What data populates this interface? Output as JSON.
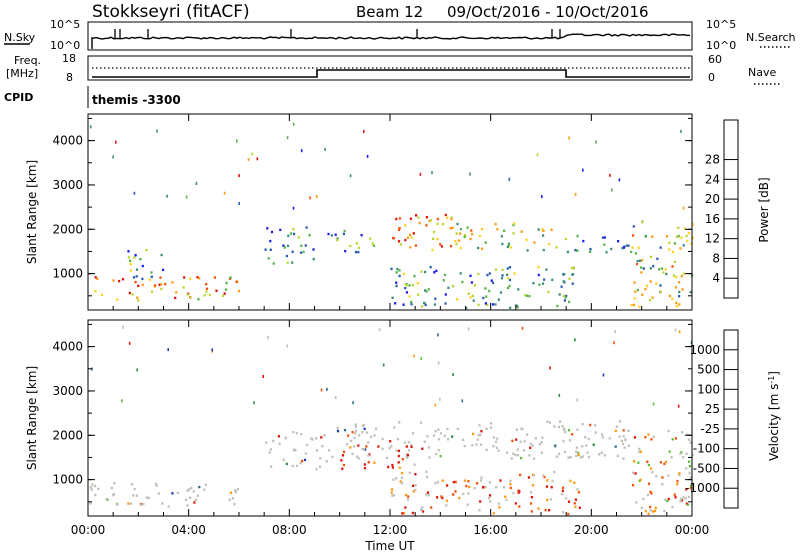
{
  "header": {
    "station": "Stokkseyri (fitACF)",
    "beam": "Beam 12",
    "date_range": "09/Oct/2016 - 10/Oct/2016"
  },
  "noise_panel": {
    "left_label": "N.Sky",
    "right_label": "N.Search",
    "left_ticks": [
      "10^5",
      "10^0"
    ],
    "right_ticks": [
      "10^5",
      "10^0"
    ]
  },
  "freq_panel": {
    "left_label_1": "Freq.",
    "left_label_2": "[MHz]",
    "right_label": "Nave",
    "left_ticks": [
      "18",
      "8"
    ],
    "right_ticks": [
      "60",
      "0"
    ]
  },
  "cpid_panel": {
    "label": "CPID",
    "program": "themis -3300"
  },
  "chart_data": [
    {
      "type": "heatmap",
      "title": "",
      "xlabel": "Time UT",
      "ylabel": "Slant Range [km]",
      "xlim": [
        "00:00",
        "24:00"
      ],
      "ylim": [
        180,
        4600
      ],
      "x_ticks": [
        "00:00",
        "04:00",
        "08:00",
        "12:00",
        "16:00",
        "20:00",
        "00:00"
      ],
      "y_ticks": [
        "1000",
        "2000",
        "3000",
        "4000"
      ],
      "colorbar_label": "Power [dB]",
      "colorbar_ticks": [
        "4",
        "8",
        "12",
        "16",
        "20",
        "24",
        "28"
      ],
      "colorbar_colors": [
        "#1e1ef0",
        "#2a5fb0",
        "#3f8a7f",
        "#55b34a",
        "#b9d62e",
        "#ffd21e",
        "#ff9a14",
        "#f4520c",
        "#e0140a"
      ],
      "scatter_regions": [
        {
          "t0": 0.0,
          "t1": 6.0,
          "r0": 420,
          "r1": 950,
          "level": 0.72
        },
        {
          "t0": 1.5,
          "t1": 3.0,
          "r0": 900,
          "r1": 1600,
          "level": 0.35
        },
        {
          "t0": 7.0,
          "t1": 9.0,
          "r0": 1250,
          "r1": 2100,
          "level": 0.2
        },
        {
          "t0": 9.5,
          "t1": 11.5,
          "r0": 1500,
          "r1": 2000,
          "level": 0.3
        },
        {
          "t0": 11.5,
          "t1": 14.5,
          "r0": 1550,
          "r1": 2350,
          "level": 0.75
        },
        {
          "t0": 14.5,
          "t1": 18.5,
          "r0": 1550,
          "r1": 2200,
          "level": 0.55
        },
        {
          "t0": 18.5,
          "t1": 21.5,
          "r0": 1500,
          "r1": 1900,
          "level": 0.25
        },
        {
          "t0": 12.0,
          "t1": 19.5,
          "r0": 250,
          "r1": 1200,
          "level": 0.3
        },
        {
          "t0": 21.5,
          "t1": 24.0,
          "r0": 250,
          "r1": 2200,
          "level": 0.5
        }
      ]
    },
    {
      "type": "heatmap",
      "title": "",
      "xlabel": "Time UT",
      "ylabel": "Slant Range [km]",
      "xlim": [
        "00:00",
        "24:00"
      ],
      "ylim": [
        180,
        4600
      ],
      "x_ticks": [
        "00:00",
        "04:00",
        "08:00",
        "12:00",
        "16:00",
        "20:00",
        "00:00"
      ],
      "y_ticks": [
        "1000",
        "2000",
        "3000",
        "4000"
      ],
      "colorbar_label": "Velocity [m s^-1]",
      "colorbar_ticks": [
        "1000",
        "500",
        "100",
        "25",
        "-25",
        "-100",
        "-500",
        "-1000"
      ],
      "colorbar_colors": [
        "#1e3cb4",
        "#2a6e8c",
        "#2e8a46",
        "#5cc23a",
        "#c0c0b8",
        "#c0c0b8",
        "#ff9a14",
        "#f4520c",
        "#e0140a"
      ],
      "scatter_regions": [
        {
          "t0": 0.0,
          "t1": 6.0,
          "r0": 420,
          "r1": 950,
          "level": 0.5
        },
        {
          "t0": 7.0,
          "t1": 9.5,
          "r0": 1250,
          "r1": 2100,
          "level": 0.5
        },
        {
          "t0": 9.5,
          "t1": 21.5,
          "r0": 1500,
          "r1": 2350,
          "level": 0.5
        },
        {
          "t0": 10.0,
          "t1": 13.5,
          "r0": 1200,
          "r1": 1800,
          "level": 0.8
        },
        {
          "t0": 12.0,
          "t1": 19.5,
          "r0": 250,
          "r1": 1200,
          "level": 0.75
        },
        {
          "t0": 21.5,
          "t1": 24.0,
          "r0": 250,
          "r1": 2200,
          "level": 0.65
        }
      ]
    }
  ]
}
